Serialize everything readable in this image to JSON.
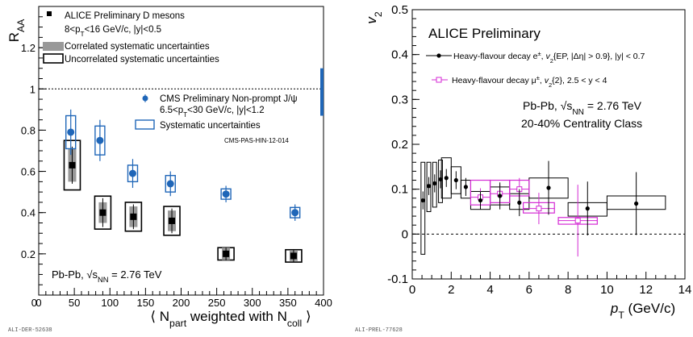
{
  "chart_data": [
    {
      "type": "scatter",
      "xlabel_pre": "⟨ N",
      "xlabel_sub1": "part",
      "xlabel_mid": " weighted with N",
      "xlabel_sub2": "coll",
      "xlabel_post": "⟩",
      "ylabel_main": "R",
      "ylabel_sub": "AA",
      "xlim": [
        0,
        400
      ],
      "ylim": [
        0,
        1.4
      ],
      "xticks": [
        "0",
        "50",
        "100",
        "150",
        "200",
        "250",
        "300",
        "350",
        "400"
      ],
      "yticks": [
        "0.2",
        "0.4",
        "0.6",
        "0.8",
        "1",
        "1.2"
      ],
      "reference_line": 1,
      "legend": {
        "alice_line1": "ALICE Preliminary D mesons",
        "alice_line2": "8<p",
        "alice_line2_sub": "T",
        "alice_line2_rest": "<16 GeV/c, |y|<0.5",
        "corr": "Correlated systematic uncertainties",
        "uncorr": "Uncorrelated systematic uncertainties",
        "cms_line1": "CMS Preliminary Non-prompt J/ψ",
        "cms_line2": "6.5<p",
        "cms_line2_sub": "T",
        "cms_line2_rest": "<30 GeV/c, |y|<1.2",
        "cms_syst": "Systematic uncertainties",
        "cms_ref": "CMS-PAS-HIN-12-014"
      },
      "system_label_pre": "Pb-Pb, ",
      "system_label_sqrt": "√",
      "system_label_s": "s",
      "system_label_sub": "NN",
      "system_label_post": " = 2.76 TeV",
      "watermark": "ALI-DER-52638",
      "series": [
        {
          "name": "ALICE Preliminary D mesons",
          "color": "#000000",
          "x": [
            47,
            90,
            133,
            187,
            263,
            358
          ],
          "y": [
            0.63,
            0.4,
            0.38,
            0.36,
            0.2,
            0.19
          ],
          "stat": [
            0.09,
            0.07,
            0.06,
            0.06,
            0.03,
            0.03
          ],
          "corr_syst": [
            0.08,
            0.05,
            0.05,
            0.05,
            0.03,
            0.025
          ],
          "uncorr_syst": [
            0.12,
            0.08,
            0.07,
            0.07,
            0.03,
            0.03
          ]
        },
        {
          "name": "CMS Preliminary Non-prompt J/ψ",
          "color": "#1f66b8",
          "x": [
            45,
            86,
            132,
            185,
            263,
            360
          ],
          "y": [
            0.79,
            0.75,
            0.59,
            0.54,
            0.49,
            0.4
          ],
          "stat": [
            0.11,
            0.1,
            0.07,
            0.06,
            0.04,
            0.04
          ],
          "syst": [
            0.08,
            0.07,
            0.04,
            0.04,
            0.025,
            0.025
          ]
        }
      ],
      "global_unc": {
        "x": 400,
        "low": 0.87,
        "high": 1.1,
        "color": "#1f66b8"
      }
    },
    {
      "type": "scatter",
      "ylabel_main": "v",
      "ylabel_sub": "2",
      "xlabel_pre": "p",
      "xlabel_sub": "T",
      "xlabel_post": " (GeV/c)",
      "xlim": [
        0,
        14
      ],
      "ylim": [
        -0.1,
        0.5
      ],
      "xticks": [
        "0",
        "2",
        "4",
        "6",
        "8",
        "10",
        "12",
        "14"
      ],
      "yticks": [
        "-0.1",
        "0",
        "0.1",
        "0.2",
        "0.3",
        "0.4",
        "0.5"
      ],
      "reference_line": 0,
      "title": "ALICE Preliminary",
      "system_line1_pre": "Pb-Pb, ",
      "system_line1_sqrt": "√",
      "system_line1_s": "s",
      "system_line1_sub": "NN",
      "system_line1_post": " = 2.76 TeV",
      "system_line2": "20-40% Centrality Class",
      "legend": {
        "e_pre": "Heavy-flavour decay e",
        "e_sup": "±",
        "e_post": ", v",
        "e_sub": "2",
        "e_rest": "{EP, |Δη| > 0.9}, |y| < 0.7",
        "mu_pre": "Heavy-flavour decay μ",
        "mu_sup": "±",
        "mu_post": ", v",
        "mu_sub": "2",
        "mu_rest": "{2}, 2.5 < y < 4"
      },
      "watermark": "ALI-PREL-77628",
      "series": [
        {
          "name": "Heavy-flavour decay e±",
          "color": "#000000",
          "x": [
            0.55,
            0.85,
            1.15,
            1.45,
            1.75,
            2.25,
            2.75,
            3.5,
            4.5,
            5.5,
            7.0,
            9.0,
            11.5
          ],
          "y": [
            0.075,
            0.107,
            0.113,
            0.122,
            0.125,
            0.12,
            0.105,
            0.075,
            0.085,
            0.07,
            0.103,
            0.057,
            0.068
          ],
          "stat": [
            0.02,
            0.02,
            0.02,
            0.02,
            0.02,
            0.02,
            0.02,
            0.02,
            0.03,
            0.03,
            0.06,
            0.06,
            0.07
          ],
          "xw": [
            0.1,
            0.1,
            0.1,
            0.1,
            0.25,
            0.25,
            0.25,
            0.5,
            0.5,
            0.5,
            1.0,
            1.0,
            1.5
          ],
          "syst_lo": [
            -0.045,
            0.05,
            0.06,
            0.07,
            0.08,
            0.09,
            0.08,
            0.055,
            0.065,
            0.055,
            0.08,
            0.04,
            0.055
          ],
          "syst_hi": [
            0.16,
            0.16,
            0.16,
            0.165,
            0.17,
            0.15,
            0.12,
            0.095,
            0.105,
            0.09,
            0.125,
            0.07,
            0.085
          ]
        },
        {
          "name": "Heavy-flavour decay μ±",
          "color": "#d42ad4",
          "x": [
            3.5,
            4.5,
            5.5,
            6.5,
            8.5
          ],
          "y": [
            0.082,
            0.09,
            0.1,
            0.057,
            0.03
          ],
          "stat": [
            0.02,
            0.02,
            0.025,
            0.035,
            0.08
          ],
          "xw": [
            0.5,
            0.5,
            0.5,
            0.8,
            1.0
          ],
          "syst_lo": [
            0.065,
            0.07,
            0.085,
            0.047,
            0.022
          ],
          "syst_hi": [
            0.12,
            0.12,
            0.12,
            0.07,
            0.037
          ]
        }
      ]
    }
  ]
}
